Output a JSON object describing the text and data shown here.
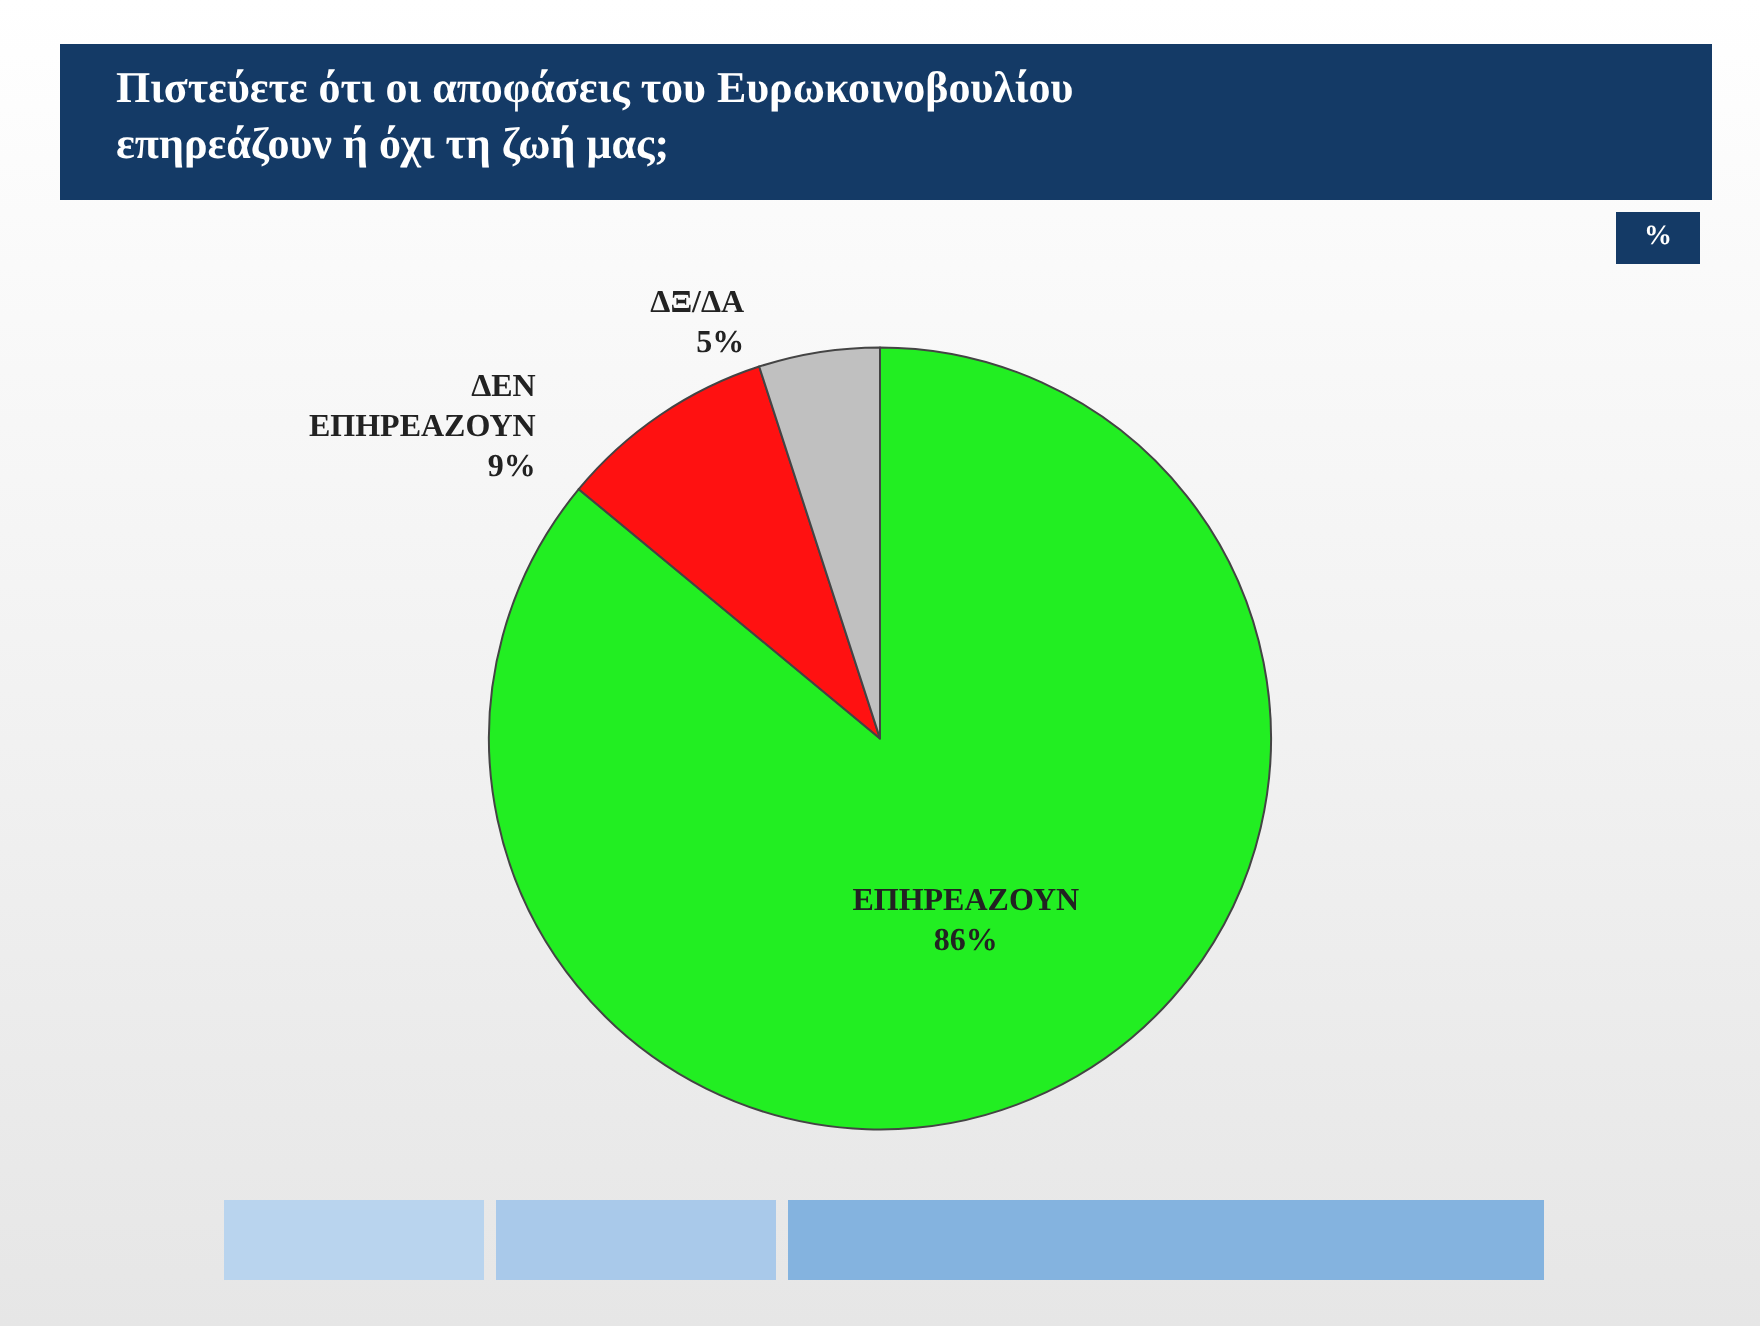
{
  "chart_data": {
    "type": "pie",
    "title": "Πιστεύετε ότι οι αποφάσεις του Ευρωκοινοβουλίου\nεπηρεάζουν ή όχι τη ζωή μας;",
    "categories": [
      "ΕΠΗΡΕΑΖΟΥΝ",
      "ΔΕΝ ΕΠΗΡΕΑΖΟΥΝ",
      "ΔΞ/ΔΑ"
    ],
    "values": [
      86,
      9,
      5
    ],
    "colors": [
      "#22ee22",
      "#ff1111",
      "#c0c0c0"
    ],
    "value_labels": [
      "86%",
      "9%",
      "5%"
    ],
    "annotations": [
      "%"
    ],
    "legend": false
  }
}
